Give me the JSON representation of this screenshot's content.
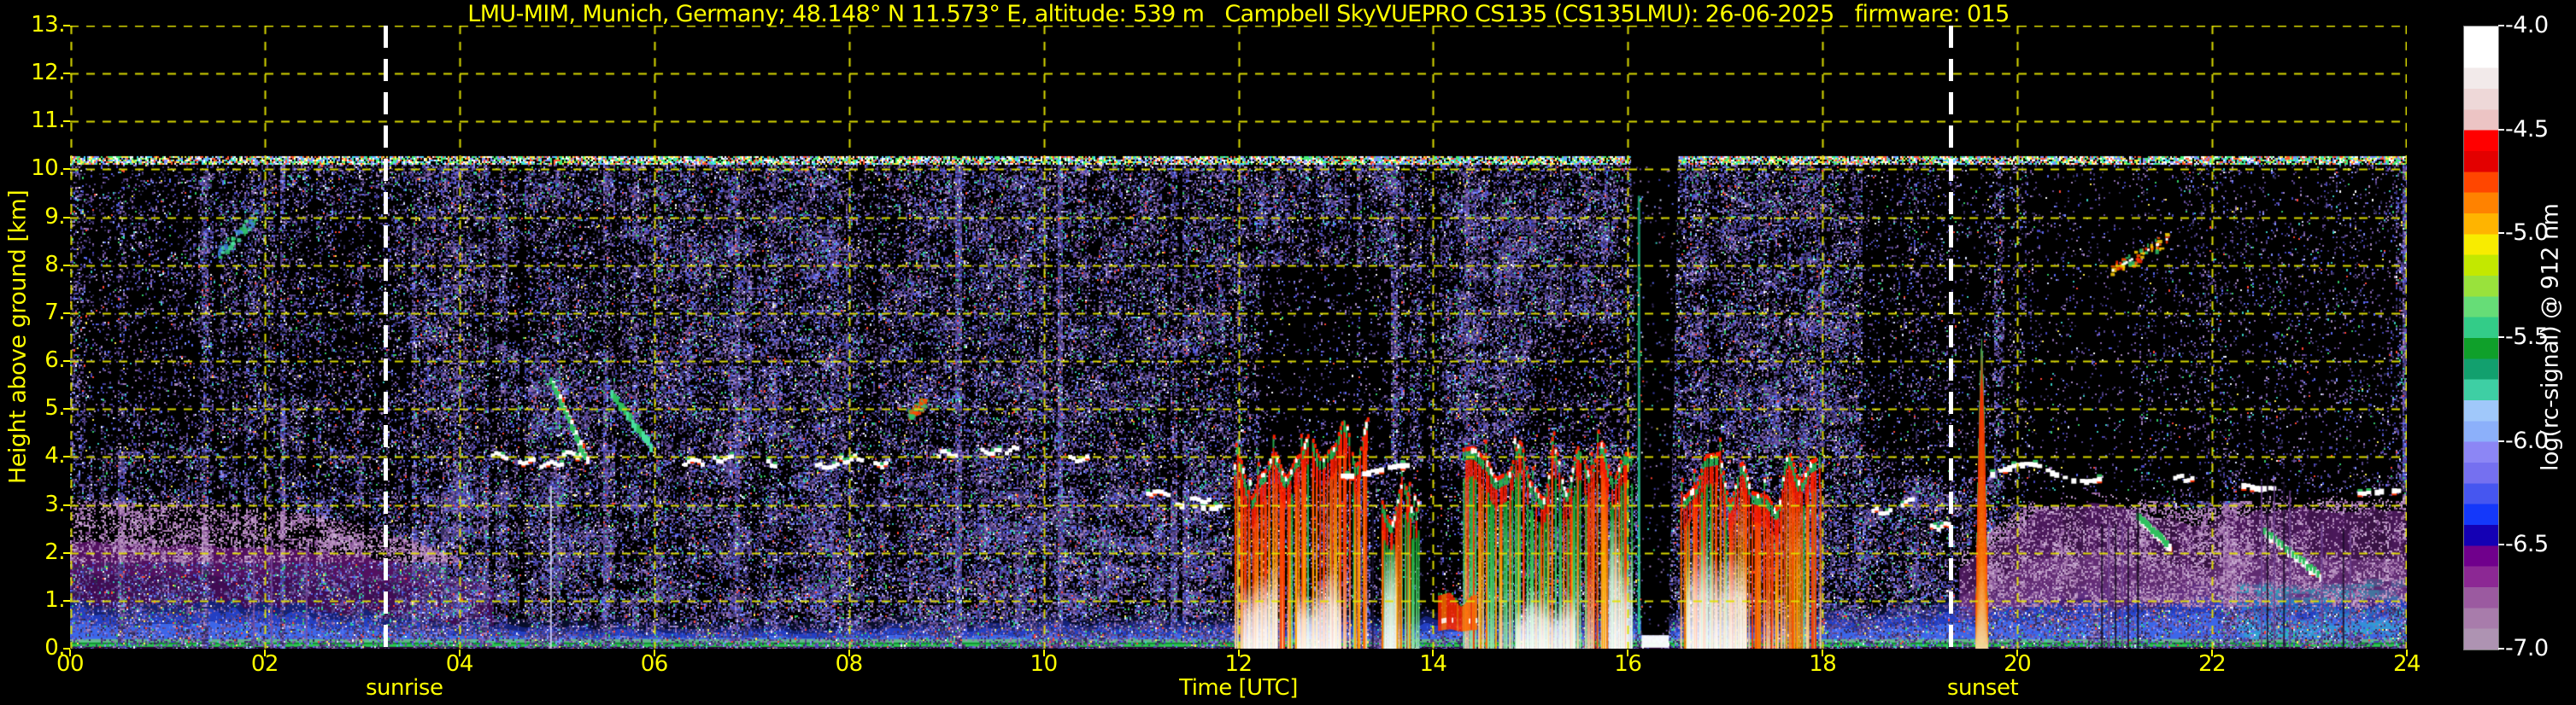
{
  "page": {
    "background": "#000000"
  },
  "title": "LMU-MIM, Munich, Germany; 48.148° N 11.573° E, altitude: 539 m   Campbell SkyVUEPRO CS135 (CS135LMU): 26-06-2025   firmware: 015",
  "axes": {
    "x_label": "Time [UTC]",
    "y_label": "Height above ground [km]",
    "x_ticks": [
      "00",
      "02",
      "04",
      "06",
      "08",
      "10",
      "12",
      "14",
      "16",
      "18",
      "20",
      "22",
      "24"
    ],
    "y_ticks": [
      "13.",
      "12.",
      "11.",
      "10.",
      "9.",
      "8.",
      "7.",
      "6.",
      "5.",
      "4.",
      "3.",
      "2.",
      "1.",
      "0."
    ],
    "tick_color": "#ffff00",
    "grid_color": "#e3e300",
    "title_color": "#ffff00"
  },
  "annotations": {
    "sunrise_label": "sunrise",
    "sunset_label": "sunset",
    "sunrise_time_utc": 3.24,
    "sunset_time_utc": 19.31,
    "line_color": "#ffffff"
  },
  "colorbar": {
    "label": "log(rc-signal) @ 912 nm",
    "tick_labels": [
      "-4.0",
      "-4.5",
      "-5.0",
      "-5.5",
      "-6.0",
      "-6.5",
      "-7.0"
    ],
    "tick_color": "#ffffff",
    "colors": [
      "#ffffff",
      "#ffffff",
      "#f2eaea",
      "#eed8d8",
      "#ecc4c4",
      "#ff0000",
      "#e30000",
      "#ff4600",
      "#ff8200",
      "#ffb400",
      "#f8ec00",
      "#c3e800",
      "#99e23c",
      "#66dd77",
      "#33cc88",
      "#0fa02a",
      "#12a06e",
      "#3ecfa4",
      "#a0c8fa",
      "#8cb0fa",
      "#8c86f5",
      "#7570f0",
      "#4656f0",
      "#1438fa",
      "#1400b4",
      "#70008c",
      "#8c2894",
      "#9b5aa0",
      "#a87cab",
      "#ae93b2"
    ]
  },
  "chart_data": {
    "type": "heatmap",
    "title": "LMU-MIM, Munich, Germany; 48.148° N 11.573° E, altitude: 539 m   Campbell SkyVUEPRO CS135 (CS135LMU): 26-06-2025   firmware: 015",
    "xlabel": "Time [UTC]",
    "ylabel": "Height above ground [km]",
    "zlabel": "log(rc-signal) @ 912 nm",
    "xlim": [
      0,
      24
    ],
    "ylim": [
      0,
      13
    ],
    "zlim": [
      -7.0,
      -4.0
    ],
    "x_tick_values": [
      0,
      2,
      4,
      6,
      8,
      10,
      12,
      14,
      16,
      18,
      20,
      22,
      24
    ],
    "y_tick_values": [
      13,
      12,
      11,
      10,
      9,
      8,
      7,
      6,
      5,
      4,
      3,
      2,
      1,
      0
    ],
    "colorbar_tick_values": [
      -4.0,
      -4.5,
      -5.0,
      -5.5,
      -6.0,
      -6.5,
      -7.0
    ],
    "grid": "dashed yellow, 1 km / 2 h",
    "legend_position": "right colorbar",
    "features": {
      "data_top_km": 10.28,
      "speckle": {
        "base_density_mid": 0.45,
        "base_density_night_upper": 0.36,
        "base_density_low": 0.5,
        "palette_dim": [
          [
            "#3b3168",
            18
          ],
          [
            "#55458a",
            16
          ],
          [
            "#6a4d9b",
            12
          ],
          [
            "#8a68ad",
            8
          ],
          [
            "#4446bd",
            10
          ],
          [
            "#5a6af0",
            6
          ],
          [
            "#8090ff",
            4
          ],
          [
            "#a98bc0",
            7
          ],
          [
            "#2c2a4e",
            8
          ],
          [
            "#35cc6a",
            2.5
          ],
          [
            "#38ccc0",
            2.5
          ],
          [
            "#ff4433",
            1.3
          ],
          [
            "#ffee55",
            1
          ],
          [
            "#ffffff",
            0.8
          ],
          [
            "#d8e2ff",
            1.2
          ]
        ],
        "palette_bright": [
          [
            "#ffffff",
            20
          ],
          [
            "#ff5533",
            15
          ],
          [
            "#ffee44",
            15
          ],
          [
            "#44ee77",
            20
          ],
          [
            "#44ddff",
            10
          ],
          [
            "#8090ff",
            20
          ]
        ],
        "palette_mauve": [
          [
            "#a87cb0",
            30
          ],
          [
            "#b995c2",
            25
          ],
          [
            "#8d5a9d",
            20
          ],
          [
            "#6d3a80",
            15
          ],
          [
            "#c9b0d4",
            10
          ]
        ],
        "dark_patches": [
          [
            0.15,
            1.3,
            4.3,
            10.1,
            0.45
          ],
          [
            2.1,
            3.3,
            5.2,
            9.3,
            0.6
          ],
          [
            4.5,
            5.6,
            6.2,
            9.2,
            0.55
          ],
          [
            12.2,
            13.55,
            3.9,
            8.0,
            0.18
          ],
          [
            13.35,
            14.3,
            0.5,
            3.8,
            0.35
          ],
          [
            15.0,
            15.9,
            4.3,
            6.8,
            0.5
          ],
          [
            18.4,
            19.75,
            3.6,
            10.1,
            0.3
          ],
          [
            19.85,
            21.25,
            3.0,
            10.1,
            0.12
          ],
          [
            21.25,
            23.95,
            3.1,
            10.1,
            0.22
          ],
          [
            23.0,
            23.9,
            1.8,
            2.9,
            0.6
          ],
          [
            8.0,
            8.35,
            3.5,
            10.1,
            0.65
          ]
        ],
        "bright_patches": [
          [
            3.4,
            4.5,
            0.3,
            3.3,
            1.5
          ],
          [
            9.0,
            11.9,
            0.4,
            3.3,
            1.3
          ],
          [
            14.2,
            15.9,
            6.6,
            9.6,
            1.25
          ],
          [
            17.2,
            18.35,
            3.6,
            6.8,
            1.2
          ],
          [
            19.9,
            20.15,
            3.0,
            10.1,
            2.2
          ],
          [
            22.1,
            22.25,
            0.3,
            4.2,
            2.0
          ],
          [
            23.88,
            24.0,
            3.0,
            10.1,
            2.5
          ],
          [
            6.1,
            7.9,
            3.4,
            6.4,
            1.15
          ]
        ]
      },
      "surface_green_band_km": 0.12,
      "boundary_layer_top_by_hour": [
        [
          0,
          0.95
        ],
        [
          2,
          0.9
        ],
        [
          3,
          0.75
        ],
        [
          4,
          0.55
        ],
        [
          5,
          0.45
        ],
        [
          7,
          0.4
        ],
        [
          9,
          0.5
        ],
        [
          12,
          0.55
        ],
        [
          18,
          0.65
        ],
        [
          19,
          0.8
        ],
        [
          20,
          1.0
        ],
        [
          22,
          1.2
        ],
        [
          24,
          1.3
        ]
      ],
      "residual_layer_night": {
        "t0": 0,
        "t1": 4.35,
        "km_base": 1.0,
        "top_by_hour": [
          [
            0,
            2.15
          ],
          [
            2,
            2.05
          ],
          [
            3,
            1.9
          ],
          [
            3.6,
            1.65
          ],
          [
            4.35,
            1.2
          ]
        ],
        "mauve_top_by_hour": [
          [
            0,
            3.1
          ],
          [
            2,
            3.0
          ],
          [
            3,
            2.6
          ],
          [
            3.6,
            2.2
          ],
          [
            4.35,
            1.6
          ]
        ]
      },
      "evening_haze": {
        "t0": 19.4,
        "t1": 24,
        "top_by_hour": [
          [
            19.4,
            1.6
          ],
          [
            20.2,
            2.8
          ],
          [
            21,
            2.9
          ],
          [
            21.8,
            2.5
          ],
          [
            22.6,
            2.8
          ],
          [
            24,
            2.8
          ]
        ]
      },
      "precip_events": [
        {
          "t0": 11.95,
          "t1": 13.33,
          "top_km": 3.85,
          "green_frac": 0.2,
          "white_cores": [
            [
              12.05,
              12.4,
              0,
              1.9
            ],
            [
              12.6,
              13.05,
              0,
              1.6
            ]
          ]
        },
        {
          "t0": 13.45,
          "t1": 13.85,
          "top_km": 3.1,
          "green_frac": 0.55,
          "white_cores": [
            [
              13.5,
              13.62,
              0,
              2.2
            ]
          ]
        },
        {
          "t0": 14.3,
          "t1": 16.03,
          "top_km": 3.6,
          "green_frac": 0.45,
          "white_cores": [
            [
              14.85,
              15.45,
              0,
              1.3
            ],
            [
              15.8,
              16.03,
              0,
              2.6
            ]
          ]
        },
        {
          "t0": 16.55,
          "t1": 17.97,
          "top_km": 3.45,
          "green_frac": 0.12,
          "white_cores": [
            [
              16.6,
              17.2,
              0,
              2.0
            ]
          ]
        }
      ],
      "low_red_band": {
        "t0": 14.05,
        "t1": 14.45,
        "km0": 0.35,
        "km1": 1.05
      },
      "cloud_lines": [
        {
          "t0": 13.05,
          "t1": 13.75,
          "km": 3.75,
          "amp": 0.12
        },
        {
          "t0": 19.72,
          "t1": 20.85,
          "km": 3.72,
          "amp": 0.18
        },
        {
          "t0": 11.35,
          "t1": 11.8,
          "km": 3.05,
          "amp": 0.06
        },
        {
          "t0": 22.3,
          "t1": 22.62,
          "km": 3.45,
          "amp": 0.05
        },
        {
          "t0": 23.45,
          "t1": 23.92,
          "km": 3.3,
          "amp": 0.05
        }
      ],
      "cumulus_dashes": [
        [
          4.32,
          4.05
        ],
        [
          4.6,
          3.95
        ],
        [
          4.82,
          3.9
        ],
        [
          5.05,
          4.1
        ],
        [
          6.3,
          3.95
        ],
        [
          6.6,
          4.0
        ],
        [
          7.15,
          3.9
        ],
        [
          7.65,
          3.85
        ],
        [
          7.9,
          4.0
        ],
        [
          8.25,
          3.9
        ],
        [
          8.9,
          4.1
        ],
        [
          9.35,
          4.15
        ],
        [
          9.6,
          4.2
        ],
        [
          10.25,
          4.0
        ],
        [
          11.05,
          3.3
        ],
        [
          11.5,
          3.15
        ],
        [
          18.5,
          2.9
        ],
        [
          18.8,
          3.1
        ],
        [
          19.1,
          2.6
        ],
        [
          21.6,
          3.6
        ]
      ],
      "virga_streaks": [
        {
          "t0": 4.95,
          "km0": 5.6,
          "t1": 5.3,
          "km1": 4.0,
          "color": "white-red"
        },
        {
          "t0": 5.55,
          "km0": 5.4,
          "t1": 5.95,
          "km1": 4.3,
          "color": "green"
        },
        {
          "t0": 21.25,
          "km0": 2.75,
          "t1": 21.55,
          "km1": 2.2,
          "color": "white-green"
        },
        {
          "t0": 22.55,
          "km0": 2.45,
          "t1": 23.1,
          "km1": 1.55,
          "color": "white-green"
        }
      ],
      "cirrus_patches": [
        {
          "t0": 1.5,
          "t1": 1.9,
          "km0": 8.25,
          "km1": 9.05,
          "palette": [
            "#2fbf6a",
            "#49e0a0",
            "#3f7fe0"
          ]
        },
        {
          "t0": 20.95,
          "t1": 21.55,
          "km0": 7.9,
          "km1": 8.6,
          "palette": [
            "#ff5a00",
            "#ff2a00",
            "#ffd000",
            "#2fbf6a"
          ]
        },
        {
          "t0": 8.6,
          "t1": 8.78,
          "km0": 4.9,
          "km1": 5.2,
          "palette": [
            "#ff4a00",
            "#2fbf6a"
          ]
        }
      ],
      "plume": {
        "t": 19.63,
        "half_width_h": 0.07,
        "top_km": 6.15
      },
      "dark_wedge": {
        "t0": 16.03,
        "t1": 16.52,
        "bottom_t0": 16.14,
        "bottom_t1": 16.42,
        "km_bottom": 0.28
      },
      "spike": {
        "t": 16.11,
        "km0": 0.3,
        "km1": 9.45
      },
      "artifact_lines": [
        [
          1.88,
          2.3,
          "#7a4fa0"
        ],
        [
          2.06,
          2.3,
          "#7a4fa0"
        ],
        [
          2.42,
          2.2,
          "#7a4fa0"
        ],
        [
          4.93,
          3.4,
          "#e8e8ff"
        ],
        [
          13.37,
          3.2,
          "#1a1030"
        ],
        [
          20.86,
          2.6,
          "#140a22"
        ],
        [
          20.93,
          2.6,
          "#6a4090"
        ],
        [
          21.0,
          2.6,
          "#140a22"
        ],
        [
          21.07,
          2.6,
          "#6a4090"
        ],
        [
          21.13,
          2.5,
          "#140a22"
        ],
        [
          21.23,
          3.0,
          "#05030a"
        ],
        [
          22.5,
          3.4,
          "#6a4090"
        ],
        [
          22.56,
          3.6,
          "#140a22"
        ],
        [
          22.63,
          3.4,
          "#6a4090"
        ],
        [
          22.73,
          3.5,
          "#140a22"
        ],
        [
          22.79,
          3.3,
          "#6a4090"
        ],
        [
          23.12,
          2.6,
          "#6a4090"
        ],
        [
          23.34,
          2.5,
          "#140a22"
        ],
        [
          23.41,
          2.4,
          "#6a4090"
        ]
      ]
    }
  }
}
